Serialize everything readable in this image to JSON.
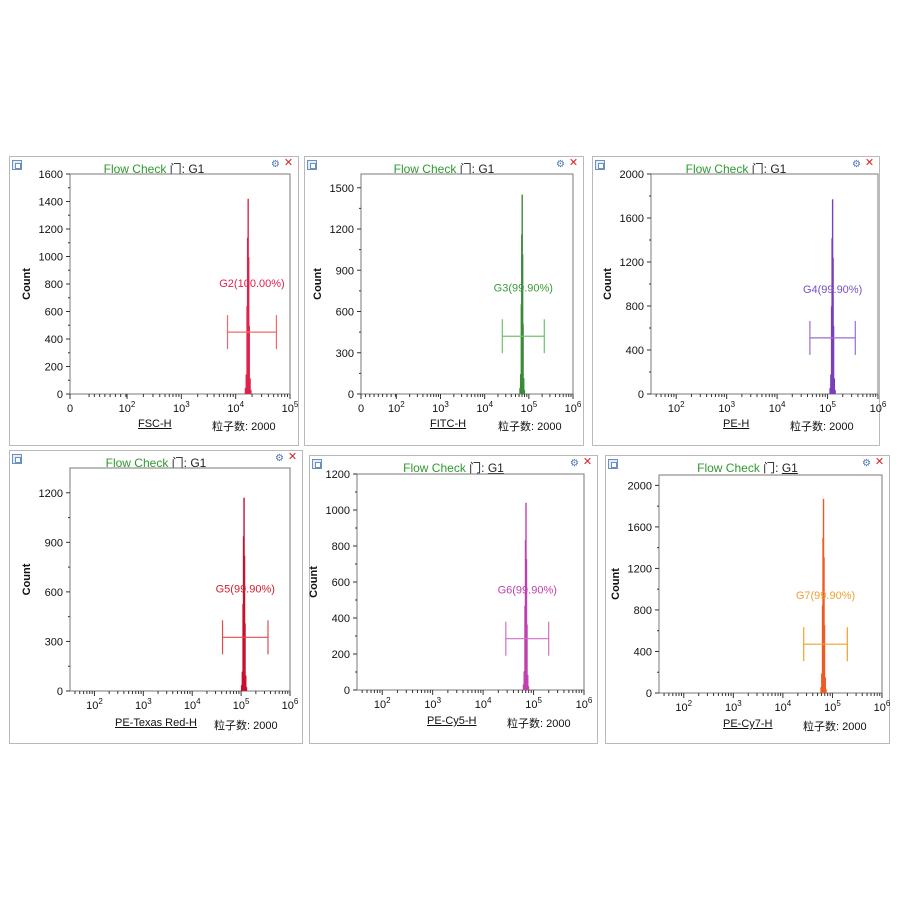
{
  "panels": [
    {
      "title_prefix": "Flow Check",
      "title_sep": "门:",
      "gate": "G1",
      "xparam": "FSC-H",
      "events_label": "粒子数:",
      "events": "2000",
      "ylabel": "Count",
      "peak_color": "#e0224a",
      "marker_color": "#f06a6a",
      "label_color": "#e0224a",
      "marker_label": "G2(100.00%)",
      "chart_data": {
        "type": "histogram",
        "xscale": "log",
        "xlim_log": [
          0.95,
          5
        ],
        "ylim": [
          0,
          1600
        ],
        "yticks": [
          "0",
          "200",
          "400",
          "600",
          "800",
          "1000",
          "1200",
          "1400",
          "1600"
        ],
        "xticks": [
          {
            "base": "0",
            "exp": ""
          },
          {
            "base": "10",
            "exp": "2"
          },
          {
            "base": "10",
            "exp": "3"
          },
          {
            "base": "10",
            "exp": "4"
          },
          {
            "base": "10",
            "exp": "5"
          }
        ],
        "xtick_logs": [
          0.95,
          2,
          3,
          4,
          5
        ],
        "peak_log": 4.23,
        "peak_height": 1420,
        "marker_range_log": [
          3.85,
          4.75
        ],
        "marker_y": 450
      }
    },
    {
      "title_prefix": "Flow Check",
      "title_sep": "门:",
      "gate": "G1",
      "xparam": "FITC-H",
      "events_label": "粒子数:",
      "events": "2000",
      "ylabel": "Count",
      "peak_color": "#3a8a3a",
      "marker_color": "#6dc46d",
      "label_color": "#3a9a3a",
      "marker_label": "G3(99.90%)",
      "chart_data": {
        "type": "histogram",
        "xscale": "log",
        "xlim_log": [
          1.2,
          6
        ],
        "ylim": [
          0,
          1600
        ],
        "yticks": [
          "0",
          "300",
          "600",
          "900",
          "1200",
          "1500"
        ],
        "ytick_values": [
          0,
          300,
          600,
          900,
          1200,
          1500
        ],
        "xticks": [
          {
            "base": "0",
            "exp": ""
          },
          {
            "base": "10",
            "exp": "2"
          },
          {
            "base": "10",
            "exp": "3"
          },
          {
            "base": "10",
            "exp": "4"
          },
          {
            "base": "10",
            "exp": "5"
          },
          {
            "base": "10",
            "exp": "6"
          }
        ],
        "xtick_logs": [
          1.2,
          2,
          3,
          4,
          5,
          6
        ],
        "peak_log": 4.85,
        "peak_height": 1450,
        "marker_range_log": [
          4.4,
          5.35
        ],
        "marker_y": 420
      }
    },
    {
      "title_prefix": "Flow Check",
      "title_sep": "门:",
      "gate": "G1",
      "xparam": "PE-H",
      "events_label": "粒子数:",
      "events": "2000",
      "ylabel": "Count",
      "peak_color": "#7a3fb8",
      "marker_color": "#9b6fcf",
      "label_color": "#7a4fc0",
      "marker_label": "G4(99.90%)",
      "chart_data": {
        "type": "histogram",
        "xscale": "log",
        "xlim_log": [
          1.5,
          6
        ],
        "ylim": [
          0,
          2000
        ],
        "yticks": [
          "0",
          "400",
          "800",
          "1200",
          "1600",
          "2000"
        ],
        "ytick_values": [
          0,
          400,
          800,
          1200,
          1600,
          2000
        ],
        "xticks": [
          {
            "base": "10",
            "exp": "2"
          },
          {
            "base": "10",
            "exp": "3"
          },
          {
            "base": "10",
            "exp": "4"
          },
          {
            "base": "10",
            "exp": "5"
          },
          {
            "base": "10",
            "exp": "6"
          }
        ],
        "xtick_logs": [
          2,
          3,
          4,
          5,
          6
        ],
        "peak_log": 5.1,
        "peak_height": 1770,
        "marker_range_log": [
          4.65,
          5.55
        ],
        "marker_y": 510
      }
    },
    {
      "title_prefix": "Flow Check",
      "title_sep": "门:",
      "gate": "G1",
      "xparam": "PE-Texas Red-H",
      "events_label": "粒子数:",
      "events": "2000",
      "ylabel": "Count",
      "peak_color": "#c8102e",
      "marker_color": "#e24b4b",
      "label_color": "#d0202e",
      "marker_label": "G5(99.90%)",
      "chart_data": {
        "type": "histogram",
        "xscale": "log",
        "xlim_log": [
          1.5,
          6
        ],
        "ylim": [
          0,
          1350
        ],
        "yticks": [
          "0",
          "300",
          "600",
          "900",
          "1200"
        ],
        "ytick_values": [
          0,
          300,
          600,
          900,
          1200
        ],
        "xticks": [
          {
            "base": "10",
            "exp": "2"
          },
          {
            "base": "10",
            "exp": "3"
          },
          {
            "base": "10",
            "exp": "4"
          },
          {
            "base": "10",
            "exp": "5"
          },
          {
            "base": "10",
            "exp": "6"
          }
        ],
        "xtick_logs": [
          2,
          3,
          4,
          5,
          6
        ],
        "peak_log": 5.06,
        "peak_height": 1170,
        "marker_range_log": [
          4.62,
          5.55
        ],
        "marker_y": 325
      }
    },
    {
      "title_prefix": "Flow Check",
      "title_sep": "门:",
      "gate": "G1",
      "xparam": "PE-Cy5-H",
      "events_label": "粒子数:",
      "events": "2000",
      "ylabel": "Count",
      "peak_color": "#c040b0",
      "marker_color": "#d070c4",
      "label_color": "#c040b0",
      "marker_label": "G6(99.90%)",
      "chart_data": {
        "type": "histogram",
        "xscale": "log",
        "xlim_log": [
          1.5,
          6
        ],
        "ylim": [
          0,
          1200
        ],
        "yticks": [
          "0",
          "200",
          "400",
          "600",
          "800",
          "1000",
          "1200"
        ],
        "ytick_values": [
          0,
          200,
          400,
          600,
          800,
          1000,
          1200
        ],
        "xticks": [
          {
            "base": "10",
            "exp": "2"
          },
          {
            "base": "10",
            "exp": "3"
          },
          {
            "base": "10",
            "exp": "4"
          },
          {
            "base": "10",
            "exp": "5"
          },
          {
            "base": "10",
            "exp": "6"
          }
        ],
        "xtick_logs": [
          2,
          3,
          4,
          5,
          6
        ],
        "peak_log": 4.85,
        "peak_height": 1040,
        "marker_range_log": [
          4.45,
          5.3
        ],
        "marker_y": 285
      }
    },
    {
      "title_prefix": "Flow Check",
      "title_sep": "门:",
      "gate": "G1",
      "xparam": "PE-Cy7-H",
      "events_label": "粒子数:",
      "events": "2000",
      "ylabel": "Count",
      "peak_color": "#ee5a24",
      "marker_color": "#f0a030",
      "label_color": "#f0a030",
      "marker_label": "G7(99.90%)",
      "chart_data": {
        "type": "histogram",
        "xscale": "log",
        "xlim_log": [
          1.5,
          6
        ],
        "ylim": [
          0,
          2100
        ],
        "yticks": [
          "0",
          "400",
          "800",
          "1200",
          "1600",
          "2000"
        ],
        "ytick_values": [
          0,
          400,
          800,
          1200,
          1600,
          2000
        ],
        "xticks": [
          {
            "base": "10",
            "exp": "2"
          },
          {
            "base": "10",
            "exp": "3"
          },
          {
            "base": "10",
            "exp": "4"
          },
          {
            "base": "10",
            "exp": "5"
          },
          {
            "base": "10",
            "exp": "6"
          }
        ],
        "xtick_logs": [
          2,
          3,
          4,
          5,
          6
        ],
        "peak_log": 4.82,
        "peak_height": 1870,
        "marker_range_log": [
          4.42,
          5.3
        ],
        "marker_y": 470
      }
    }
  ]
}
